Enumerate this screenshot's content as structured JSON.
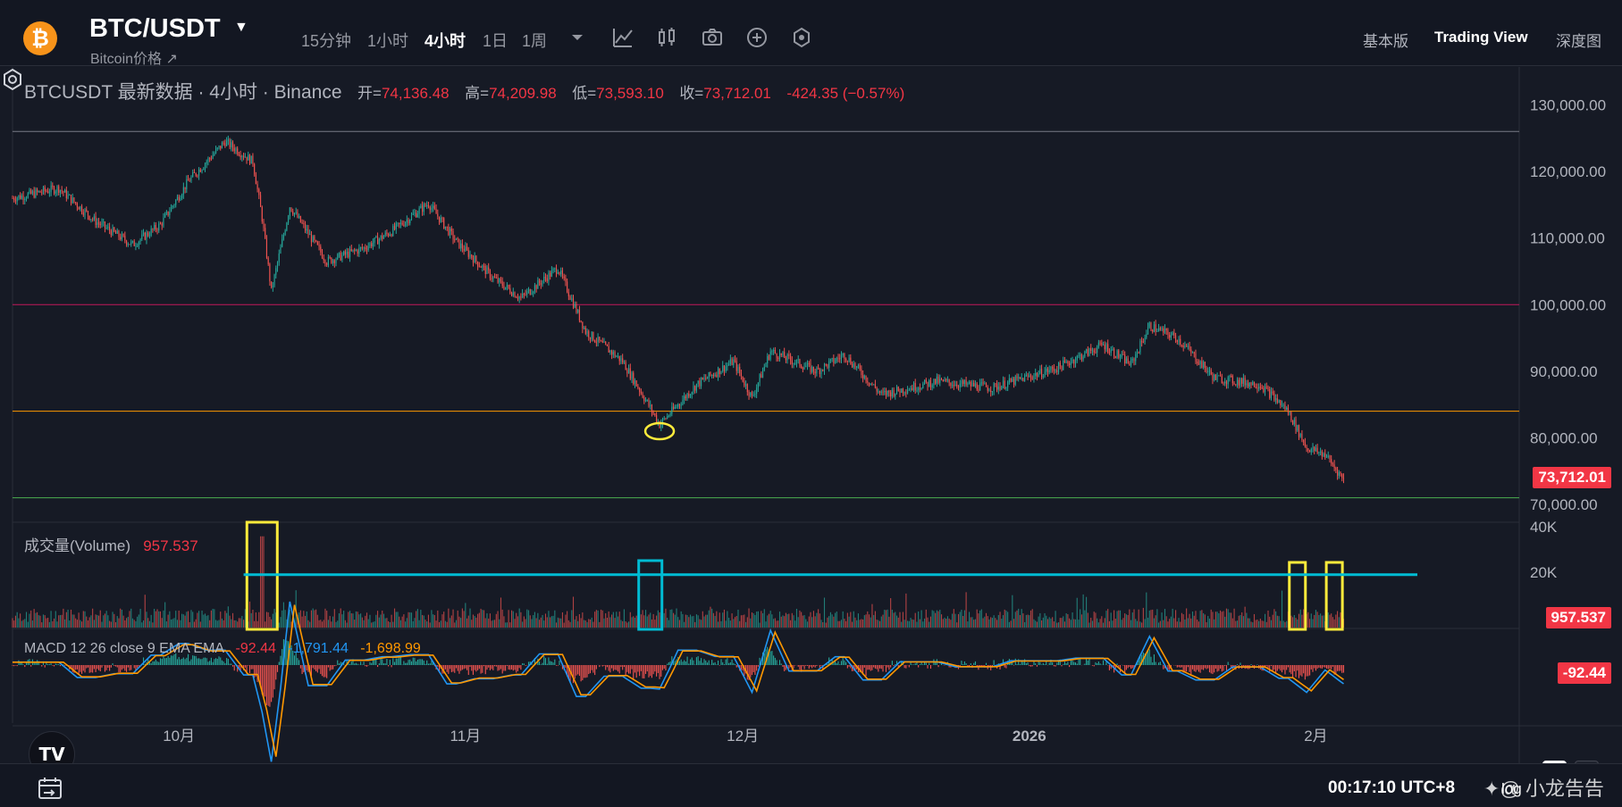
{
  "header": {
    "symbol": "BTC/USDT",
    "subtitle": "Bitcoin价格 ↗",
    "coin_icon": "bitcoin-icon",
    "timeframes": [
      "15分钟",
      "1小时",
      "4小时",
      "1日",
      "1周"
    ],
    "active_timeframe": "4小时",
    "tools": [
      "timeframe-dropdown-icon",
      "indicator-chart-icon",
      "candle-type-icon",
      "camera-icon",
      "add-circle-icon",
      "settings-hex-icon"
    ],
    "views": [
      "基本版",
      "Trading View",
      "深度图"
    ],
    "active_view": "Trading View"
  },
  "legend": {
    "title": "BTCUSDT 最新数据 · 4小时 · Binance",
    "open_label": "开=",
    "open": "74,136.48",
    "high_label": "高=",
    "high": "74,209.98",
    "low_label": "低=",
    "low": "73,593.10",
    "close_label": "收=",
    "close": "73,712.01",
    "change": "-424.35 (−0.57%)"
  },
  "volume_legend": {
    "label": "成交量(Volume)",
    "value": "957.537"
  },
  "macd_legend": {
    "label": "MACD 12 26 close 9 EMA EMA",
    "hist": "-92.44",
    "macd": "-1,791.44",
    "signal": "-1,698.99"
  },
  "price_tags": {
    "last_price": "73,712.01",
    "volume": "957.537",
    "macd": "-92.44"
  },
  "price_axis": [
    "130,000.00",
    "120,000.00",
    "110,000.00",
    "100,000.00",
    "90,000.00",
    "80,000.00",
    "70,000.00"
  ],
  "volume_axis": [
    "40K",
    "20K"
  ],
  "time_axis": [
    "10月",
    "11月",
    "12月",
    "2026",
    "2月"
  ],
  "bottom": {
    "clock": "00:17:10 UTC+8",
    "log_label": "log",
    "watermark": "✦@ 小龙告告"
  },
  "scale_buttons": {
    "auto": "A",
    "log": "L"
  },
  "tv_logo": "TV",
  "colors": {
    "up": "#26a69a",
    "down": "#ef5350",
    "accent_red": "#f23645",
    "macd_line": "#2196f3",
    "signal_line": "#ff9800",
    "resistance": "#c2185b",
    "support": "#ff9800",
    "floor": "#4caf50",
    "annotation_yellow": "#ffeb3b",
    "annotation_cyan": "#00bcd4"
  },
  "chart_data": {
    "type": "candlestick",
    "price_axis_range": [
      68000,
      131000
    ],
    "horizontal_levels": [
      {
        "value": 126000,
        "color": "#787b86"
      },
      {
        "value": 100000,
        "color": "#c2185b"
      },
      {
        "value": 84000,
        "color": "#ff9800"
      },
      {
        "value": 71000,
        "color": "#4caf50"
      }
    ],
    "close_path": [
      {
        "date": "2025-09-13",
        "close": 116000
      },
      {
        "date": "2025-09-18",
        "close": 117500
      },
      {
        "date": "2025-09-22",
        "close": 112500
      },
      {
        "date": "2025-09-26",
        "close": 109000
      },
      {
        "date": "2025-09-29",
        "close": 112000
      },
      {
        "date": "2025-10-02",
        "close": 118500
      },
      {
        "date": "2025-10-06",
        "close": 124500
      },
      {
        "date": "2025-10-09",
        "close": 121500
      },
      {
        "date": "2025-10-10",
        "close": 113000
      },
      {
        "date": "2025-10-11",
        "close": 102000
      },
      {
        "date": "2025-10-13",
        "close": 114800
      },
      {
        "date": "2025-10-17",
        "close": 106500
      },
      {
        "date": "2025-10-21",
        "close": 108500
      },
      {
        "date": "2025-10-24",
        "close": 111000
      },
      {
        "date": "2025-10-28",
        "close": 115200
      },
      {
        "date": "2025-10-31",
        "close": 109500
      },
      {
        "date": "2025-11-04",
        "close": 104000
      },
      {
        "date": "2025-11-07",
        "close": 101000
      },
      {
        "date": "2025-11-11",
        "close": 105500
      },
      {
        "date": "2025-11-14",
        "close": 96000
      },
      {
        "date": "2025-11-18",
        "close": 91500
      },
      {
        "date": "2025-11-21",
        "close": 84500
      },
      {
        "date": "2025-11-22",
        "close": 82000
      },
      {
        "date": "2025-11-26",
        "close": 88000
      },
      {
        "date": "2025-11-30",
        "close": 91500
      },
      {
        "date": "2025-12-02",
        "close": 86000
      },
      {
        "date": "2025-12-04",
        "close": 93000
      },
      {
        "date": "2025-12-09",
        "close": 90000
      },
      {
        "date": "2025-12-12",
        "close": 92500
      },
      {
        "date": "2025-12-16",
        "close": 86500
      },
      {
        "date": "2025-12-22",
        "close": 88500
      },
      {
        "date": "2025-12-28",
        "close": 87500
      },
      {
        "date": "2026-01-04",
        "close": 90500
      },
      {
        "date": "2026-01-09",
        "close": 94000
      },
      {
        "date": "2026-01-12",
        "close": 91000
      },
      {
        "date": "2026-01-14",
        "close": 96800
      },
      {
        "date": "2026-01-17",
        "close": 95000
      },
      {
        "date": "2026-01-21",
        "close": 89000
      },
      {
        "date": "2026-01-26",
        "close": 88000
      },
      {
        "date": "2026-01-29",
        "close": 84000
      },
      {
        "date": "2026-01-31",
        "close": 78500
      },
      {
        "date": "2026-02-02",
        "close": 77500
      },
      {
        "date": "2026-02-04",
        "close": 73712
      }
    ],
    "annotations": [
      {
        "type": "ellipse",
        "color": "#ffeb3b",
        "date": "2025-11-22",
        "price": 81000
      },
      {
        "type": "rect",
        "pane": "volume",
        "color": "#ffeb3b",
        "date": "2025-10-10"
      },
      {
        "type": "rect",
        "pane": "volume",
        "color": "#00bcd4",
        "date": "2025-11-21"
      },
      {
        "type": "rect",
        "pane": "volume",
        "color": "#ffeb3b",
        "date": "2026-01-30"
      },
      {
        "type": "rect",
        "pane": "volume",
        "color": "#ffeb3b",
        "date": "2026-02-03"
      },
      {
        "type": "hline",
        "pane": "volume",
        "color": "#00bcd4",
        "value": 22000
      }
    ]
  }
}
